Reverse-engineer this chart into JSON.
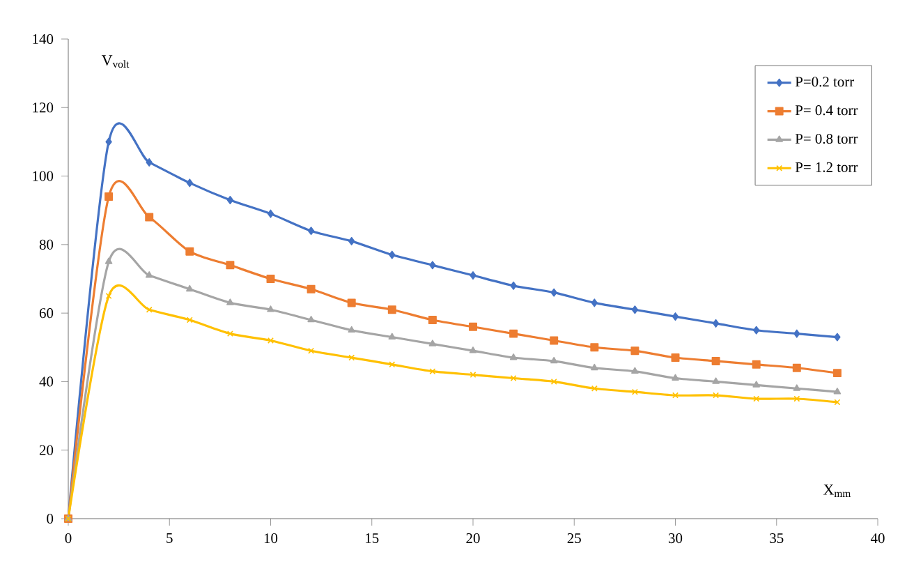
{
  "chart_data": {
    "type": "line",
    "xlabel": "X$_{mm}$",
    "ylabel": "V$_{volt}$",
    "x": [
      0,
      2,
      4,
      6,
      8,
      10,
      12,
      14,
      16,
      18,
      20,
      22,
      24,
      26,
      28,
      30,
      32,
      34,
      36,
      38
    ],
    "series": [
      {
        "name": "P=0.2 torr",
        "color": "#4472c4",
        "marker": "diamond",
        "values": [
          0,
          110,
          104,
          98,
          93,
          89,
          84,
          81,
          77,
          74,
          71,
          68,
          66,
          63,
          61,
          59,
          57,
          55,
          54,
          53
        ]
      },
      {
        "name": "P= 0.4 torr",
        "color": "#ed7d31",
        "marker": "square",
        "values": [
          0,
          94,
          88,
          78,
          74,
          70,
          67,
          63,
          61,
          58,
          56,
          54,
          52,
          50,
          49,
          47,
          46,
          45,
          44,
          42.5
        ]
      },
      {
        "name": "P= 0.8 torr",
        "color": "#a5a5a5",
        "marker": "triangle",
        "values": [
          0,
          75,
          71,
          67,
          63,
          61,
          58,
          55,
          53,
          51,
          49,
          47,
          46,
          44,
          43,
          41,
          40,
          39,
          38,
          37
        ]
      },
      {
        "name": "P= 1.2 torr",
        "color": "#ffc000",
        "marker": "cross",
        "values": [
          0,
          65,
          61,
          58,
          54,
          52,
          49,
          47,
          45,
          43,
          42,
          41,
          40,
          38,
          37,
          36,
          36,
          35,
          35,
          34
        ]
      }
    ],
    "xlim": [
      0,
      40
    ],
    "xticks": [
      0,
      5,
      10,
      15,
      20,
      25,
      30,
      35,
      40
    ],
    "ylim": [
      0,
      140
    ],
    "yticks": [
      0,
      20,
      40,
      60,
      80,
      100,
      120,
      140
    ],
    "grid": false,
    "legend": "top right"
  }
}
